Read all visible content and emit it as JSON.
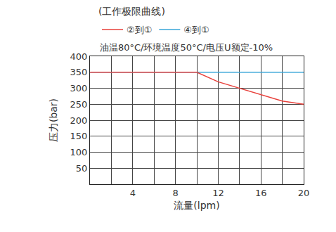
{
  "chart_data": {
    "type": "line",
    "title": "(工作极限曲线)",
    "subtitle": "油温80°C/环境温度50°C/电压U额定-10%",
    "x_label": "流量(lpm)",
    "y_label": "压力(bar)",
    "x": [
      0,
      10,
      12,
      14,
      16,
      18,
      20
    ],
    "series": [
      {
        "name": "④到①",
        "color": "#3aa6d9",
        "values": [
          350,
          350,
          350,
          350,
          350,
          350,
          350
        ]
      },
      {
        "name": "②到①",
        "color": "#e8413c",
        "values": [
          350,
          350,
          320,
          300,
          280,
          260,
          250
        ]
      }
    ],
    "xlim": [
      0,
      20
    ],
    "xticks": [
      4,
      8,
      12,
      16,
      20
    ],
    "ylim": [
      0,
      400
    ],
    "yticks": [
      50,
      100,
      150,
      200,
      250,
      300,
      350,
      400
    ],
    "grid": true,
    "legend": "top"
  }
}
